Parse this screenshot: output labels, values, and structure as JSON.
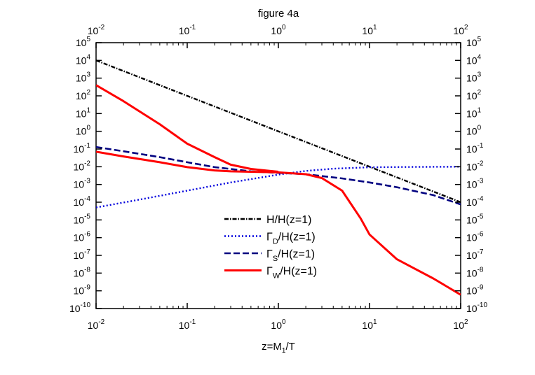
{
  "chart_data": {
    "type": "line",
    "title": "figure 4a",
    "xlabel": {
      "main": "z=M",
      "sub": "1",
      "tail": "/T"
    },
    "x_scale": "log",
    "y_scale": "log",
    "xlim": [
      0.01,
      100
    ],
    "ylim": [
      1e-10,
      100000
    ],
    "x_ticks": [
      {
        "value": 0.01,
        "base": "10",
        "exp": "-2"
      },
      {
        "value": 0.1,
        "base": "10",
        "exp": "-1"
      },
      {
        "value": 1,
        "base": "10",
        "exp": "0"
      },
      {
        "value": 10,
        "base": "10",
        "exp": "1"
      },
      {
        "value": 100,
        "base": "10",
        "exp": "2"
      }
    ],
    "y_ticks": [
      {
        "value": 100000,
        "base": "10",
        "exp": "5"
      },
      {
        "value": 10000,
        "base": "10",
        "exp": "4"
      },
      {
        "value": 1000,
        "base": "10",
        "exp": "3"
      },
      {
        "value": 100,
        "base": "10",
        "exp": "2"
      },
      {
        "value": 10,
        "base": "10",
        "exp": "1"
      },
      {
        "value": 1,
        "base": "10",
        "exp": "0"
      },
      {
        "value": 0.1,
        "base": "10",
        "exp": "-1"
      },
      {
        "value": 0.01,
        "base": "10",
        "exp": "-2"
      },
      {
        "value": 0.001,
        "base": "10",
        "exp": "-3"
      },
      {
        "value": 0.0001,
        "base": "10",
        "exp": "-4"
      },
      {
        "value": 1e-05,
        "base": "10",
        "exp": "-5"
      },
      {
        "value": 1e-06,
        "base": "10",
        "exp": "-6"
      },
      {
        "value": 1e-07,
        "base": "10",
        "exp": "-7"
      },
      {
        "value": 1e-08,
        "base": "10",
        "exp": "-8"
      },
      {
        "value": 1e-09,
        "base": "10",
        "exp": "-9"
      },
      {
        "value": 1e-10,
        "base": "10",
        "exp": "-10"
      }
    ],
    "grid": false,
    "legend_position": "lower-center",
    "series": [
      {
        "id": "H",
        "name": {
          "main": "H/H(z=1)",
          "sub": "",
          "tail": ""
        },
        "color": "#000000",
        "style": "dash-dot",
        "x": [
          0.01,
          0.1,
          1,
          10,
          100
        ],
        "y": [
          10000,
          100,
          1,
          0.01,
          0.0001
        ]
      },
      {
        "id": "GD",
        "name": {
          "main": "Γ",
          "sub": "D",
          "tail": "/H(z=1)"
        },
        "color": "#0000dd",
        "style": "dotted",
        "x": [
          0.01,
          0.03,
          0.1,
          0.3,
          1,
          2,
          4,
          10,
          30,
          100
        ],
        "y": [
          5e-05,
          0.00014,
          0.00045,
          0.0013,
          0.0036,
          0.0058,
          0.0078,
          0.0093,
          0.0098,
          0.01
        ]
      },
      {
        "id": "GS",
        "name": {
          "main": "Γ",
          "sub": "S",
          "tail": "/H(z=1)"
        },
        "color": "#000080",
        "style": "dashed",
        "x": [
          0.01,
          0.02,
          0.05,
          0.1,
          0.2,
          0.5,
          1,
          2,
          5,
          10,
          20,
          50,
          100
        ],
        "y": [
          0.13,
          0.075,
          0.035,
          0.018,
          0.0095,
          0.0055,
          0.0045,
          0.0038,
          0.0022,
          0.0013,
          0.0007,
          0.00025,
          7.5e-05
        ]
      },
      {
        "id": "GW",
        "name": {
          "main": "Γ",
          "sub": "W",
          "tail": "/H(z=1)"
        },
        "color": "#ff0000",
        "style": "solid",
        "segments": [
          {
            "x": [
              0.01,
              0.02,
              0.05,
              0.1,
              0.2,
              0.3,
              0.5,
              1,
              2,
              3,
              5,
              8,
              10,
              20,
              50,
              100
            ],
            "y": [
              0.07,
              0.038,
              0.018,
              0.0095,
              0.0062,
              0.0055,
              0.0052,
              0.0048,
              0.0038,
              0.0023,
              0.00045,
              1.2e-05,
              1.5e-06,
              6e-08,
              5e-09,
              6e-10
            ]
          },
          {
            "x": [
              0.01,
              0.02,
              0.05,
              0.1,
              0.2,
              0.3,
              0.5,
              0.8,
              1
            ],
            "y": [
              400,
              50,
              2.5,
              0.2,
              0.035,
              0.013,
              0.0075,
              0.0058,
              0.0052
            ]
          }
        ]
      }
    ]
  }
}
